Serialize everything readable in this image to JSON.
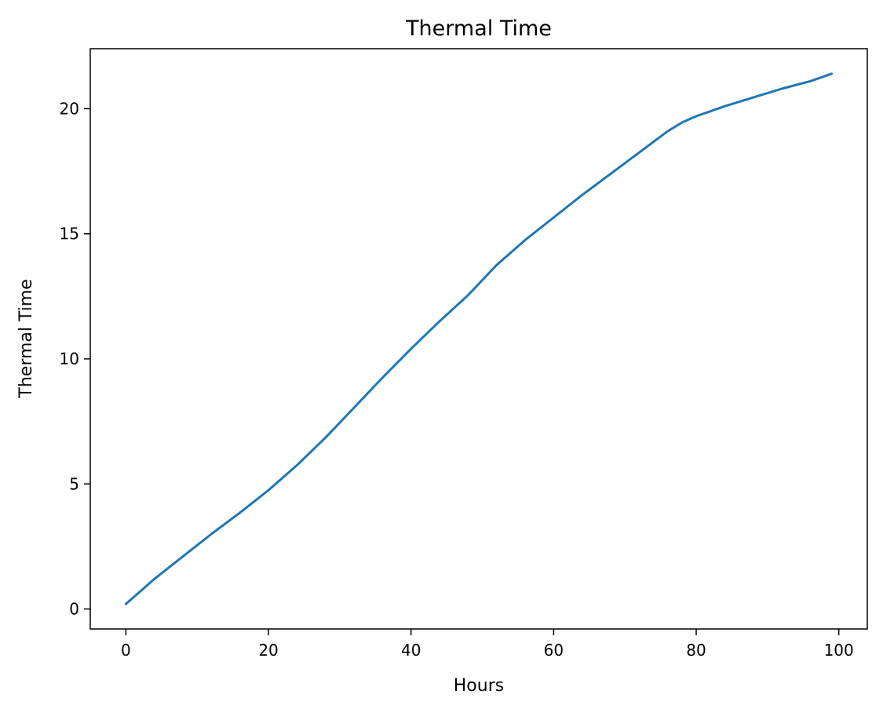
{
  "chart_data": {
    "type": "line",
    "title": "Thermal Time",
    "xlabel": "Hours",
    "ylabel": "Thermal Time",
    "xlim": [
      -5,
      104
    ],
    "ylim": [
      -0.8,
      22.4
    ],
    "xticks": [
      0,
      20,
      40,
      60,
      80,
      100
    ],
    "yticks": [
      0,
      5,
      10,
      15,
      20
    ],
    "grid": false,
    "colors": {
      "line": "#1f77b4",
      "axes": "#000000",
      "background": "#ffffff"
    },
    "series": [
      {
        "x": [
          0,
          2,
          4,
          8,
          12,
          16,
          20,
          24,
          28,
          32,
          36,
          40,
          44,
          48,
          52,
          56,
          60,
          64,
          68,
          72,
          76,
          78,
          80,
          84,
          88,
          92,
          96,
          99
        ],
        "y": [
          0.2,
          0.7,
          1.2,
          2.1,
          3.0,
          3.85,
          4.75,
          5.75,
          6.85,
          8.05,
          9.25,
          10.4,
          11.5,
          12.55,
          13.75,
          14.75,
          15.65,
          16.55,
          17.4,
          18.25,
          19.1,
          19.45,
          19.7,
          20.1,
          20.45,
          20.8,
          21.1,
          21.4
        ]
      }
    ]
  }
}
